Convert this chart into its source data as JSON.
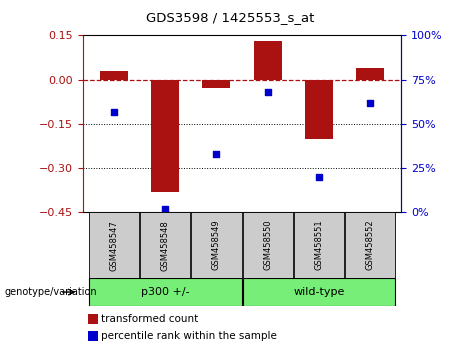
{
  "title": "GDS3598 / 1425553_s_at",
  "samples": [
    "GSM458547",
    "GSM458548",
    "GSM458549",
    "GSM458550",
    "GSM458551",
    "GSM458552"
  ],
  "bar_values": [
    0.03,
    -0.38,
    -0.03,
    0.13,
    -0.2,
    0.04
  ],
  "percentile_values": [
    57,
    2,
    33,
    68,
    20,
    62
  ],
  "ylim_left": [
    -0.45,
    0.15
  ],
  "ylim_right": [
    0,
    100
  ],
  "yticks_left": [
    0.15,
    0,
    -0.15,
    -0.3,
    -0.45
  ],
  "yticks_right": [
    100,
    75,
    50,
    25,
    0
  ],
  "bar_color": "#aa1111",
  "dot_color": "#0000cc",
  "dotted_lines": [
    -0.15,
    -0.3
  ],
  "group1_label": "p300 +/-",
  "group2_label": "wild-type",
  "group1_indices": [
    0,
    1,
    2
  ],
  "group2_indices": [
    3,
    4,
    5
  ],
  "group_color": "#77ee77",
  "genotype_label": "genotype/variation",
  "legend_bar_label": "transformed count",
  "legend_dot_label": "percentile rank within the sample",
  "sample_bg": "#cccccc",
  "bar_width": 0.55
}
